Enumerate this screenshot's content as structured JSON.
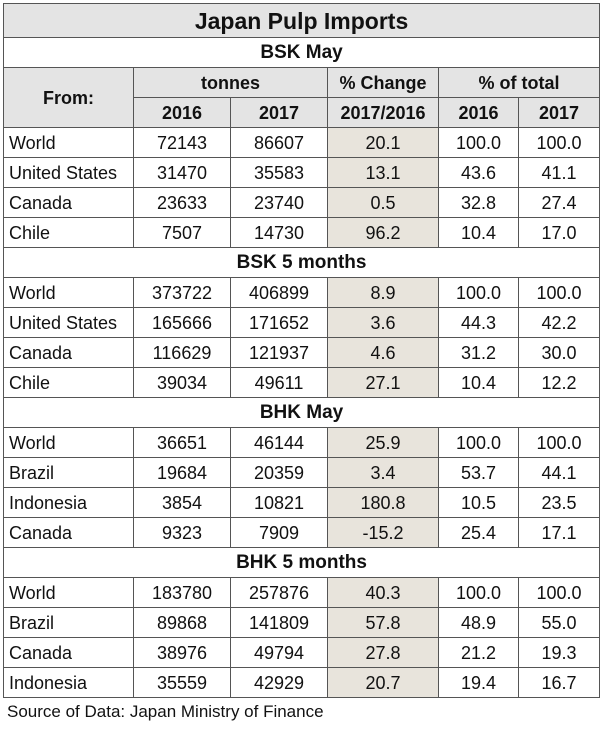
{
  "title": "Japan Pulp Imports",
  "header": {
    "from": "From:",
    "tonnes": "tonnes",
    "pct_change": "% Change",
    "pct_total": "% of total",
    "y2016": "2016",
    "y2017": "2017",
    "change_period": "2017/2016"
  },
  "sections": [
    {
      "name": "BSK May",
      "rows": [
        {
          "label": "World",
          "t2016": "72143",
          "t2017": "86607",
          "change": "20.1",
          "p2016": "100.0",
          "p2017": "100.0"
        },
        {
          "label": "United States",
          "t2016": "31470",
          "t2017": "35583",
          "change": "13.1",
          "p2016": "43.6",
          "p2017": "41.1"
        },
        {
          "label": "Canada",
          "t2016": "23633",
          "t2017": "23740",
          "change": "0.5",
          "p2016": "32.8",
          "p2017": "27.4"
        },
        {
          "label": "Chile",
          "t2016": "7507",
          "t2017": "14730",
          "change": "96.2",
          "p2016": "10.4",
          "p2017": "17.0"
        }
      ]
    },
    {
      "name": "BSK 5 months",
      "rows": [
        {
          "label": "World",
          "t2016": "373722",
          "t2017": "406899",
          "change": "8.9",
          "p2016": "100.0",
          "p2017": "100.0"
        },
        {
          "label": "United States",
          "t2016": "165666",
          "t2017": "171652",
          "change": "3.6",
          "p2016": "44.3",
          "p2017": "42.2"
        },
        {
          "label": "Canada",
          "t2016": "116629",
          "t2017": "121937",
          "change": "4.6",
          "p2016": "31.2",
          "p2017": "30.0"
        },
        {
          "label": "Chile",
          "t2016": "39034",
          "t2017": "49611",
          "change": "27.1",
          "p2016": "10.4",
          "p2017": "12.2"
        }
      ]
    },
    {
      "name": "BHK May",
      "rows": [
        {
          "label": "World",
          "t2016": "36651",
          "t2017": "46144",
          "change": "25.9",
          "p2016": "100.0",
          "p2017": "100.0"
        },
        {
          "label": "Brazil",
          "t2016": "19684",
          "t2017": "20359",
          "change": "3.4",
          "p2016": "53.7",
          "p2017": "44.1"
        },
        {
          "label": "Indonesia",
          "t2016": "3854",
          "t2017": "10821",
          "change": "180.8",
          "p2016": "10.5",
          "p2017": "23.5"
        },
        {
          "label": "Canada",
          "t2016": "9323",
          "t2017": "7909",
          "change": "-15.2",
          "p2016": "25.4",
          "p2017": "17.1"
        }
      ]
    },
    {
      "name": "BHK 5 months",
      "rows": [
        {
          "label": "World",
          "t2016": "183780",
          "t2017": "257876",
          "change": "40.3",
          "p2016": "100.0",
          "p2017": "100.0"
        },
        {
          "label": "Brazil",
          "t2016": "89868",
          "t2017": "141809",
          "change": "57.8",
          "p2016": "48.9",
          "p2017": "55.0"
        },
        {
          "label": "Canada",
          "t2016": "38976",
          "t2017": "49794",
          "change": "27.8",
          "p2016": "21.2",
          "p2017": "19.3"
        },
        {
          "label": "Indonesia",
          "t2016": "35559",
          "t2017": "42929",
          "change": "20.7",
          "p2016": "19.4",
          "p2017": "16.7"
        }
      ]
    }
  ],
  "source": "Source of Data: Japan Ministry of Finance",
  "colors": {
    "header_bg": "#e4e4e4",
    "change_bg": "#e8e4dc",
    "border": "#555555"
  }
}
